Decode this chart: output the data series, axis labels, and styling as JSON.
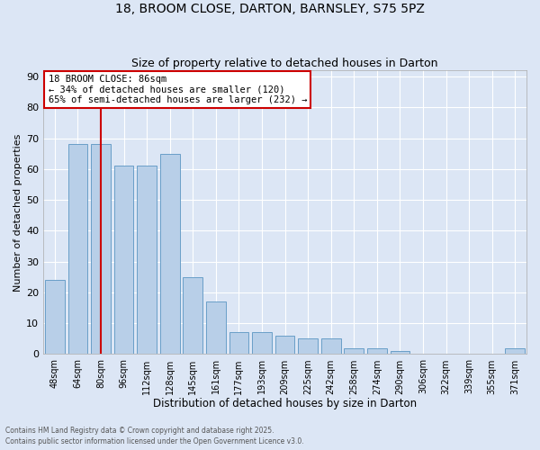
{
  "title1": "18, BROOM CLOSE, DARTON, BARNSLEY, S75 5PZ",
  "title2": "Size of property relative to detached houses in Darton",
  "xlabel": "Distribution of detached houses by size in Darton",
  "ylabel": "Number of detached properties",
  "categories": [
    "48sqm",
    "64sqm",
    "80sqm",
    "96sqm",
    "112sqm",
    "128sqm",
    "145sqm",
    "161sqm",
    "177sqm",
    "193sqm",
    "209sqm",
    "225sqm",
    "242sqm",
    "258sqm",
    "274sqm",
    "290sqm",
    "306sqm",
    "322sqm",
    "339sqm",
    "355sqm",
    "371sqm"
  ],
  "values": [
    24,
    68,
    68,
    61,
    61,
    65,
    25,
    17,
    7,
    7,
    6,
    5,
    5,
    2,
    2,
    1,
    0,
    0,
    0,
    0,
    2
  ],
  "bar_color": "#b8cfe8",
  "bar_edge_color": "#6a9fc8",
  "fig_bg_color": "#dce6f5",
  "ax_bg_color": "#dce6f5",
  "grid_color": "#ffffff",
  "vline_x": 2,
  "vline_color": "#cc0000",
  "annotation_text": "18 BROOM CLOSE: 86sqm\n← 34% of detached houses are smaller (120)\n65% of semi-detached houses are larger (232) →",
  "annotation_box_color": "#ffffff",
  "annotation_box_edge_color": "#cc0000",
  "ylim": [
    0,
    92
  ],
  "yticks": [
    0,
    10,
    20,
    30,
    40,
    50,
    60,
    70,
    80,
    90
  ],
  "footer1": "Contains HM Land Registry data © Crown copyright and database right 2025.",
  "footer2": "Contains public sector information licensed under the Open Government Licence v3.0."
}
